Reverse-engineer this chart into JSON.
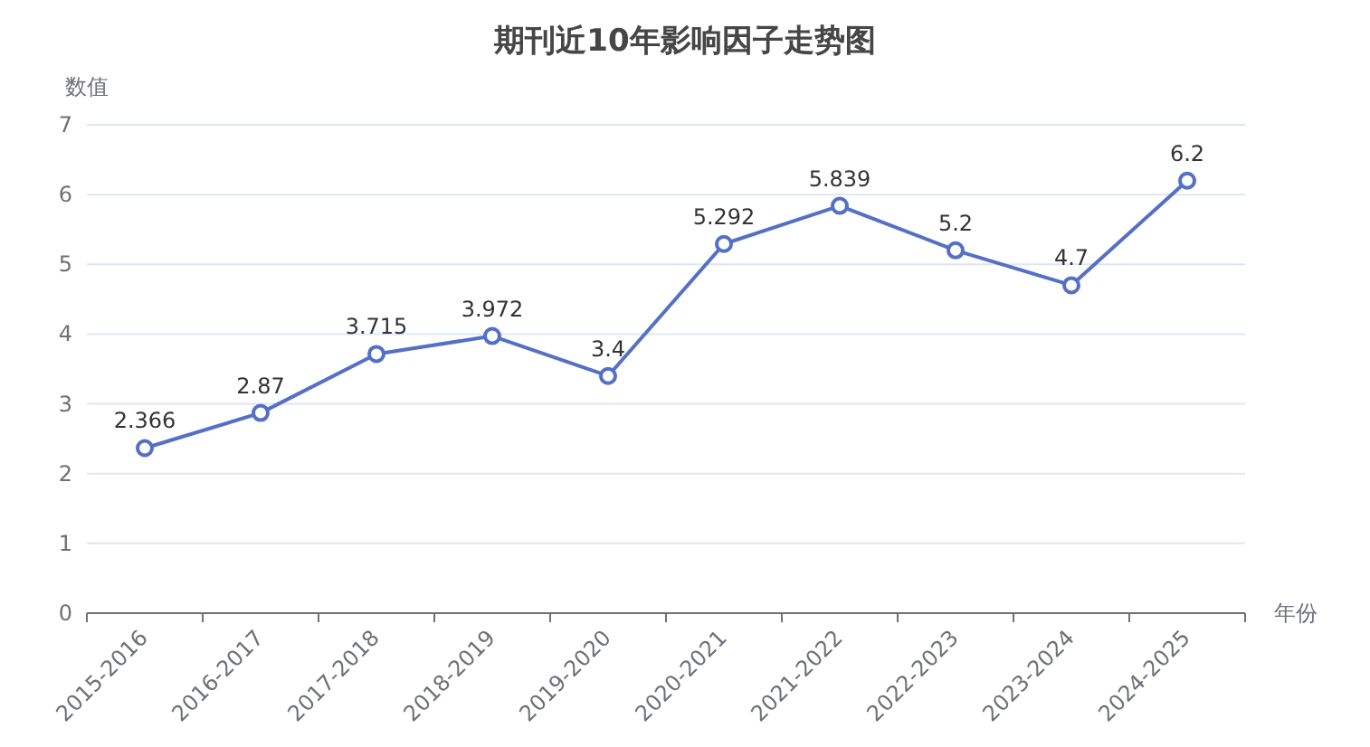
{
  "chart_data": {
    "type": "line",
    "title": "期刊近10年影响因子走势图",
    "xlabel": "年份",
    "ylabel": "数值",
    "categories": [
      "2015-2016",
      "2016-2017",
      "2017-2018",
      "2018-2019",
      "2019-2020",
      "2020-2021",
      "2021-2022",
      "2022-2023",
      "2023-2024",
      "2024-2025"
    ],
    "series": [
      {
        "color": "#5470c6",
        "values": [
          2.366,
          2.87,
          3.715,
          3.972,
          3.4,
          5.292,
          5.839,
          5.2,
          4.7,
          6.2
        ]
      }
    ],
    "ylim": [
      0,
      7
    ],
    "yticks": [
      0,
      1,
      2,
      3,
      4,
      5,
      6,
      7
    ],
    "grid": "y",
    "marker": "circle",
    "line_style": "solid",
    "data_labels": true
  }
}
